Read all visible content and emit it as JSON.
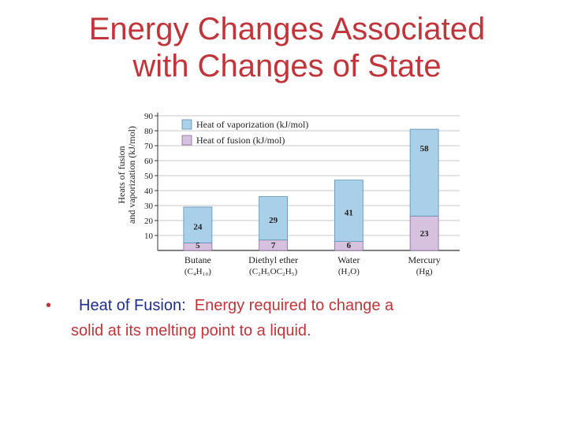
{
  "slide": {
    "title_line1": "Energy Changes Associated",
    "title_line2": "with Changes of State",
    "bullet_symbol": "•",
    "bullet_term": "Heat of Fusion:",
    "bullet_text_line1": "Energy required to change a",
    "bullet_text_line2": "solid at its melting point to a liquid."
  },
  "colors": {
    "title": "#c0343a",
    "term": "#1f2d8f",
    "vaporization": "#a9cfe9",
    "fusion": "#d6c1df"
  },
  "chart_data": {
    "type": "bar",
    "stacked": true,
    "ylabel": "Heats of fusion and vaporization (kJ/mol)",
    "ylim": [
      0,
      90
    ],
    "yticks": [
      10,
      20,
      30,
      40,
      50,
      60,
      70,
      80,
      90
    ],
    "grid": true,
    "legend_position": "top-left",
    "categories": [
      "Butane",
      "Diethyl ether",
      "Water",
      "Mercury"
    ],
    "category_formulas": [
      "(C₄H₁₀)",
      "(C₂H₅OC₂H₅)",
      "(H₂O)",
      "(Hg)"
    ],
    "series": [
      {
        "name": "Heat of fusion (kJ/mol)",
        "key": "fusion",
        "values": [
          5,
          7,
          6,
          23
        ]
      },
      {
        "name": "Heat of vaporization (kJ/mol)",
        "key": "vaporization",
        "values": [
          24,
          29,
          41,
          58
        ]
      }
    ]
  }
}
